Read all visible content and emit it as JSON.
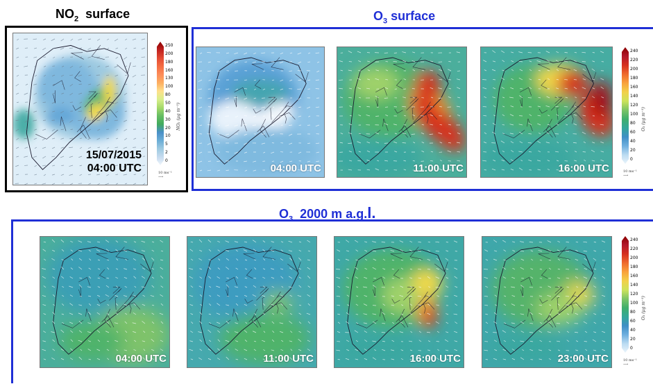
{
  "titles": {
    "no2_surface": {
      "species": "NO",
      "sub": "2",
      "suffix": "  surface"
    },
    "o3_surface": {
      "species": "O",
      "sub": "3",
      "suffix": " surface"
    },
    "o3_2000": {
      "species": "O",
      "sub": "3",
      "suffix": "  2000 m a.g.",
      "tail": "l."
    }
  },
  "no2_panel": {
    "date": "15/07/2015",
    "time": "04:00 UTC",
    "colorbar": {
      "ticks": [
        "250",
        "200",
        "180",
        "160",
        "130",
        "100",
        "80",
        "50",
        "40",
        "30",
        "20",
        "10",
        "5",
        "2",
        "0"
      ],
      "unit": "NO₂ (µg m⁻³)",
      "wind_key": "10 ms⁻¹",
      "colors": [
        "#8b0000",
        "#c0211f",
        "#e34a33",
        "#f46d43",
        "#fc8d59",
        "#fdae61",
        "#fee08b",
        "#d9ef8b",
        "#a6d96a",
        "#66bd63",
        "#41ab5d",
        "#4a90c8",
        "#6baed6",
        "#9ecae1",
        "#c6dbef",
        "#eef5fb"
      ]
    }
  },
  "o3_surface_panels": [
    {
      "time": "04:00 UTC"
    },
    {
      "time": "11:00 UTC"
    },
    {
      "time": "16:00 UTC"
    }
  ],
  "o3_2000_panels": [
    {
      "time": "04:00 UTC"
    },
    {
      "time": "11:00 UTC"
    },
    {
      "time": "16:00 UTC"
    },
    {
      "time": "23:00 UTC"
    }
  ],
  "o3_colorbar": {
    "ticks": [
      "240",
      "220",
      "200",
      "180",
      "160",
      "140",
      "120",
      "100",
      "80",
      "60",
      "40",
      "20",
      "0"
    ],
    "unit": "O₃ (µg m⁻³)",
    "wind_key": "10 ms⁻¹",
    "colors": [
      "#8b0000",
      "#b2182b",
      "#d6301f",
      "#ef6a2d",
      "#f9a23c",
      "#f2d14a",
      "#cde35b",
      "#7cc466",
      "#3fae6c",
      "#33a79a",
      "#3f8fc6",
      "#6fb0df",
      "#bcdcf2",
      "#eaf4fb"
    ]
  },
  "colors": {
    "no2_frame": "#000000",
    "o3_frame": "#1f2fd6",
    "o3_title": "#1f2fd6"
  }
}
